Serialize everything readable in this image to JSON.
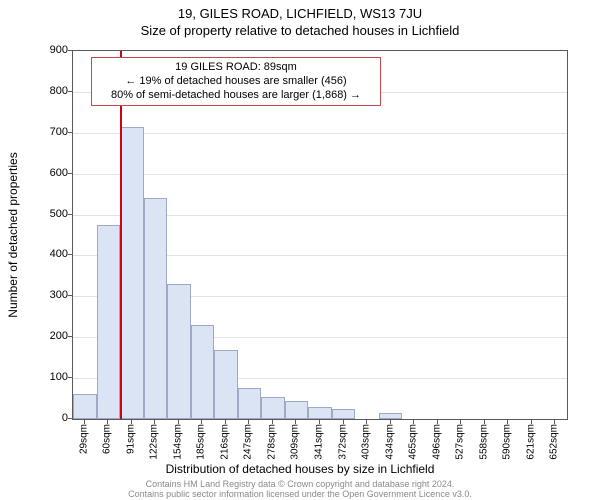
{
  "titles": {
    "main": "19, GILES ROAD, LICHFIELD, WS13 7JU",
    "sub": "Size of property relative to detached houses in Lichfield"
  },
  "axes": {
    "ylabel": "Number of detached properties",
    "xlabel": "Distribution of detached houses by size in Lichfield",
    "ylim": [
      0,
      900
    ],
    "ytick_step": 100,
    "label_fontsize": 12,
    "tick_fontsize": 11
  },
  "histogram": {
    "type": "bar",
    "x_labels": [
      "29sqm",
      "60sqm",
      "91sqm",
      "122sqm",
      "154sqm",
      "185sqm",
      "216sqm",
      "247sqm",
      "278sqm",
      "309sqm",
      "341sqm",
      "372sqm",
      "403sqm",
      "434sqm",
      "465sqm",
      "496sqm",
      "527sqm",
      "558sqm",
      "590sqm",
      "621sqm",
      "652sqm"
    ],
    "values": [
      60,
      475,
      715,
      540,
      330,
      230,
      170,
      75,
      55,
      45,
      30,
      25,
      0,
      15,
      0,
      0,
      0,
      0,
      0,
      0,
      0
    ],
    "bar_fill": "#dbe4f5",
    "bar_border": "#9fa9c4",
    "bar_width_ratio": 1.0
  },
  "marker": {
    "position_index": 2,
    "color": "#d00018"
  },
  "annotation": {
    "lines": [
      "19 GILES ROAD: 89sqm",
      "← 19% of detached houses are smaller (456)",
      "80% of semi-detached houses are larger (1,868) →"
    ],
    "border_color": "#c24a4a",
    "background": "#ffffff"
  },
  "style": {
    "background_color": "#ffffff",
    "grid_color": "#e3e3e3",
    "axis_color": "#5a5a5a",
    "title_fontsize": 13
  },
  "footer": {
    "line1": "Contains HM Land Registry data © Crown copyright and database right 2024.",
    "line2": "Contains public sector information licensed under the Open Government Licence v3.0."
  }
}
